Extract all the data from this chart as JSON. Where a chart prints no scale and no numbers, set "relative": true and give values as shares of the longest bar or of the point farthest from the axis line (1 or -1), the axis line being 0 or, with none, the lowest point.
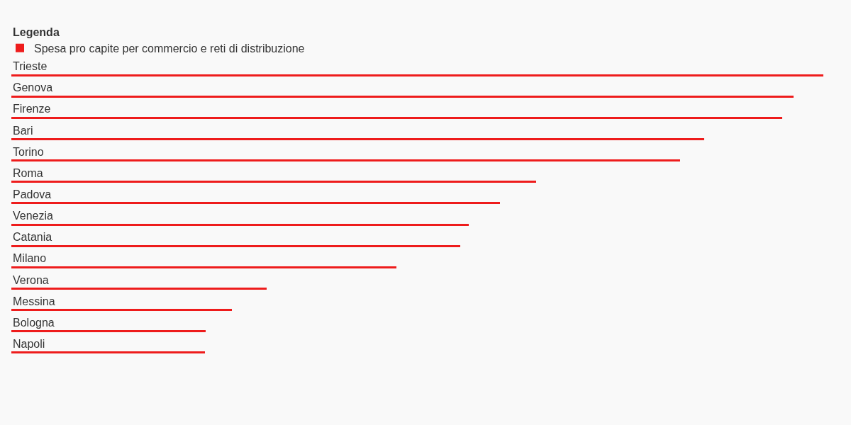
{
  "chart_data": {
    "type": "bar",
    "orientation": "horizontal",
    "relative": true,
    "legend_title": "Legenda",
    "legend": "top left",
    "categories": [
      "Trieste",
      "Genova",
      "Firenze",
      "Bari",
      "Torino",
      "Roma",
      "Padova",
      "Venezia",
      "Catania",
      "Milano",
      "Verona",
      "Messina",
      "Bologna",
      "Napoli"
    ],
    "series": [
      {
        "name": "Spesa pro capite per commercio e reti di distribuzione",
        "color": "#ee1c1c",
        "values": [
          1,
          0.963,
          0.949,
          0.853,
          0.824,
          0.646,
          0.602,
          0.563,
          0.553,
          0.474,
          0.314,
          0.272,
          0.239,
          0.238
        ]
      }
    ]
  }
}
